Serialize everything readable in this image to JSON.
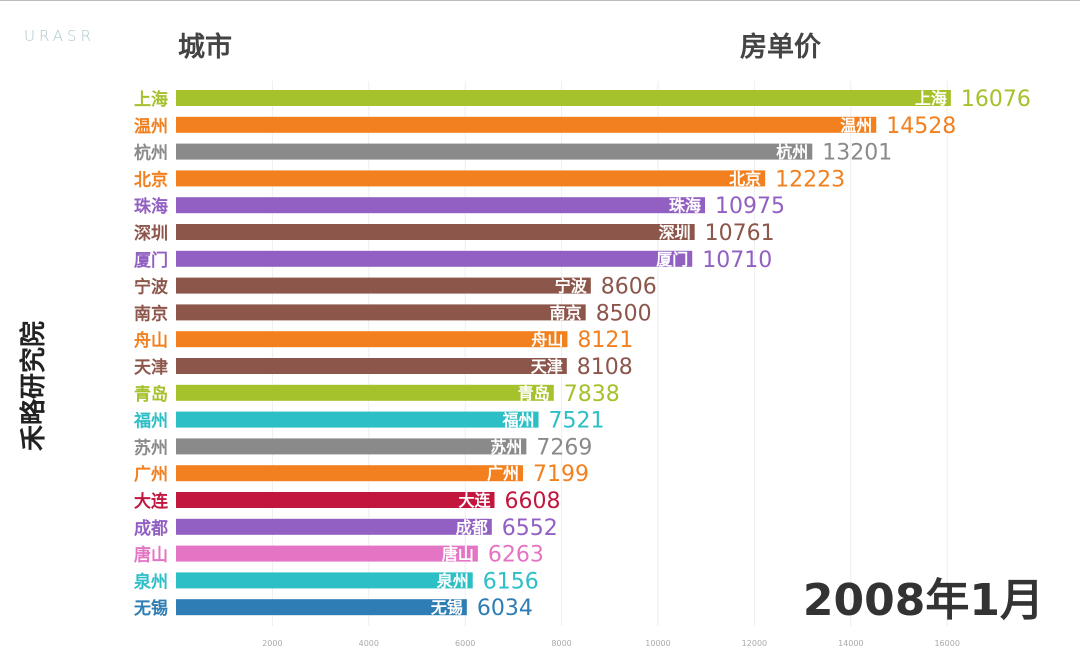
{
  "logo": "URASR",
  "header": {
    "left": "城市",
    "right": "房单价"
  },
  "side_label": "禾略研究院",
  "date": "2008年1月",
  "chart_data": {
    "type": "bar",
    "orientation": "horizontal",
    "xlim": [
      0,
      16500
    ],
    "x_ticks": [
      2000,
      4000,
      6000,
      8000,
      10000,
      12000,
      14000,
      16000
    ],
    "grid": true,
    "categories": [
      "上海",
      "温州",
      "杭州",
      "北京",
      "珠海",
      "深圳",
      "厦门",
      "宁波",
      "南京",
      "舟山",
      "天津",
      "青岛",
      "福州",
      "苏州",
      "广州",
      "大连",
      "成都",
      "唐山",
      "泉州",
      "无锡"
    ],
    "values": [
      16076,
      14528,
      13201,
      12223,
      10975,
      10761,
      10710,
      8606,
      8500,
      8121,
      8108,
      7838,
      7521,
      7269,
      7199,
      6608,
      6552,
      6263,
      6156,
      6034
    ],
    "colors": [
      "#a5c12b",
      "#f2801f",
      "#8a8a8a",
      "#f2801f",
      "#9260c2",
      "#8c564b",
      "#9260c2",
      "#8c564b",
      "#8c564b",
      "#f2801f",
      "#8c564b",
      "#a5c12b",
      "#2dbfc6",
      "#8a8a8a",
      "#f2801f",
      "#c3163e",
      "#9260c2",
      "#e474c4",
      "#2dbfc6",
      "#2e7db4"
    ]
  }
}
